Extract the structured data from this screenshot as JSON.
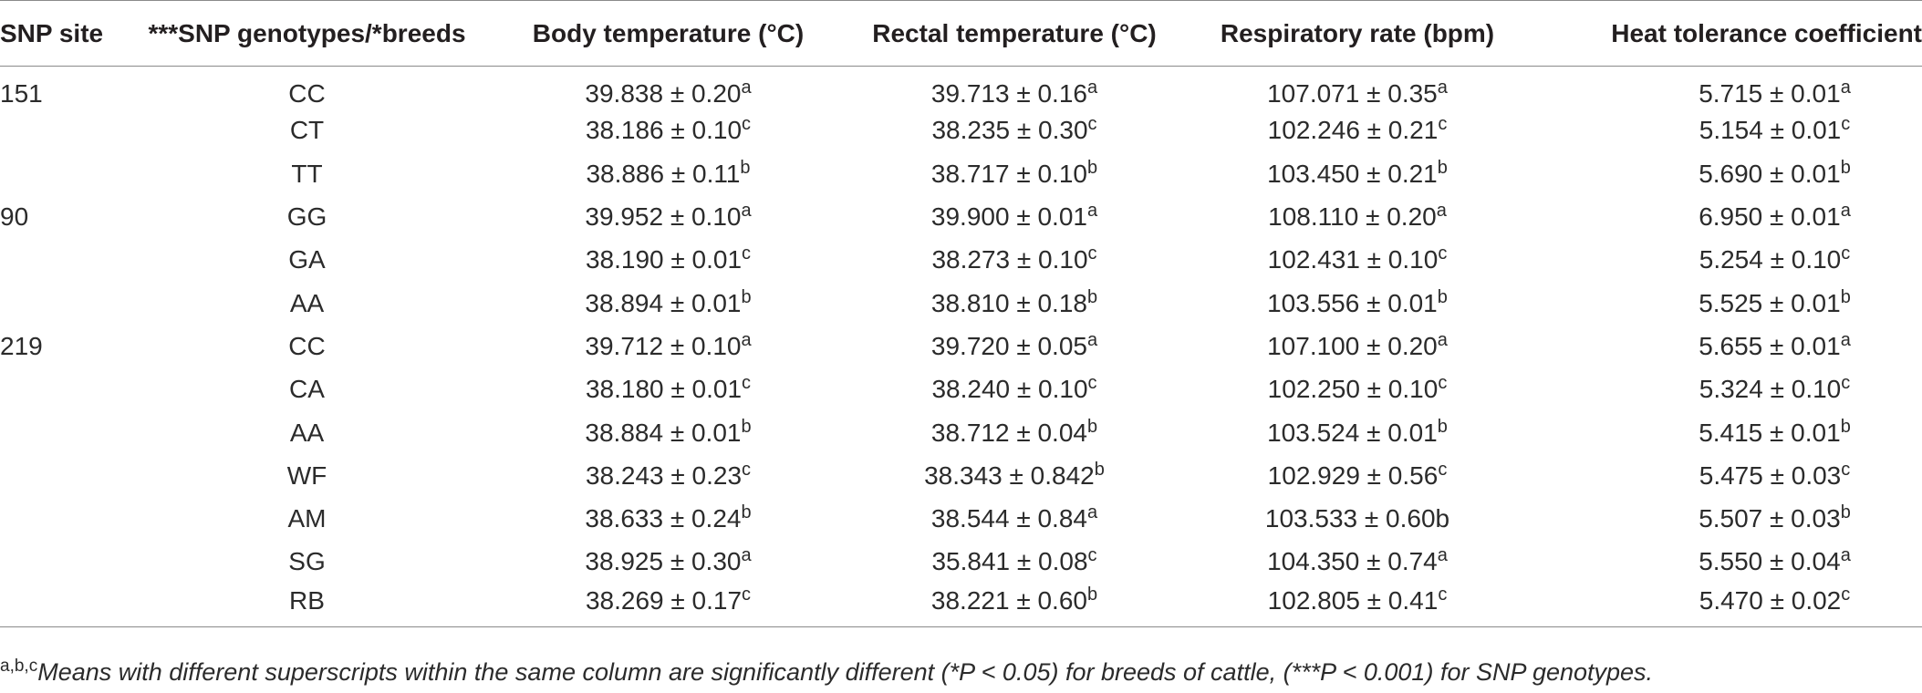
{
  "table": {
    "headers": [
      "SNP site",
      "***SNP genotypes/*breeds",
      "Body temperature (°C)",
      "Rectal temperature (°C)",
      "Respiratory rate (bpm)",
      "Heat tolerance coefficient"
    ],
    "rows": [
      {
        "site": "151",
        "genotype": "CC",
        "body": "39.838 ± 0.20",
        "body_sup": "a",
        "rectal": "39.713 ± 0.16",
        "rectal_sup": "a",
        "resp": "107.071 ± 0.35",
        "resp_sup": "a",
        "htc": "5.715 ± 0.01",
        "htc_sup": "a"
      },
      {
        "site": "",
        "genotype": "CT",
        "body": "38.186 ± 0.10",
        "body_sup": "c",
        "rectal": "38.235 ± 0.30",
        "rectal_sup": "c",
        "resp": "102.246 ± 0.21",
        "resp_sup": "c",
        "htc": "5.154 ± 0.01",
        "htc_sup": "c"
      },
      {
        "site": "",
        "genotype": "TT",
        "body": "38.886 ± 0.11",
        "body_sup": "b",
        "rectal": "38.717 ± 0.10",
        "rectal_sup": "b",
        "resp": "103.450 ± 0.21",
        "resp_sup": "b",
        "htc": "5.690 ± 0.01",
        "htc_sup": "b"
      },
      {
        "site": "90",
        "genotype": "GG",
        "body": "39.952 ± 0.10",
        "body_sup": "a",
        "rectal": "39.900 ± 0.01",
        "rectal_sup": "a",
        "resp": "108.110 ± 0.20",
        "resp_sup": "a",
        "htc": "6.950 ± 0.01",
        "htc_sup": "a"
      },
      {
        "site": "",
        "genotype": "GA",
        "body": "38.190 ± 0.01",
        "body_sup": "c",
        "rectal": "38.273 ± 0.10",
        "rectal_sup": "c",
        "resp": "102.431 ± 0.10",
        "resp_sup": "c",
        "htc": "5.254 ± 0.10",
        "htc_sup": "c"
      },
      {
        "site": "",
        "genotype": "AA",
        "body": "38.894 ± 0.01",
        "body_sup": "b",
        "rectal": "38.810 ± 0.18",
        "rectal_sup": "b",
        "resp": "103.556 ± 0.01",
        "resp_sup": "b",
        "htc": "5.525 ± 0.01",
        "htc_sup": "b"
      },
      {
        "site": "219",
        "genotype": "CC",
        "body": "39.712 ± 0.10",
        "body_sup": "a",
        "rectal": "39.720 ± 0.05",
        "rectal_sup": "a",
        "resp": "107.100 ± 0.20",
        "resp_sup": "a",
        "htc": "5.655 ± 0.01",
        "htc_sup": "a"
      },
      {
        "site": "",
        "genotype": "CA",
        "body": "38.180 ± 0.01",
        "body_sup": "c",
        "rectal": "38.240 ± 0.10",
        "rectal_sup": "c",
        "resp": "102.250 ± 0.10",
        "resp_sup": "c",
        "htc": "5.324 ± 0.10",
        "htc_sup": "c"
      },
      {
        "site": "",
        "genotype": "AA",
        "body": "38.884 ± 0.01",
        "body_sup": "b",
        "rectal": "38.712 ± 0.04",
        "rectal_sup": "b",
        "resp": "103.524 ± 0.01",
        "resp_sup": "b",
        "htc": "5.415 ± 0.01",
        "htc_sup": "b"
      },
      {
        "site": "",
        "genotype": "WF",
        "body": "38.243 ± 0.23",
        "body_sup": "c",
        "rectal": "38.343 ± 0.842",
        "rectal_sup": "b",
        "resp": "102.929 ± 0.56",
        "resp_sup": "c",
        "htc": "5.475 ± 0.03",
        "htc_sup": "c"
      },
      {
        "site": "",
        "genotype": "AM",
        "body": "38.633 ± 0.24",
        "body_sup": "b",
        "rectal": "38.544 ± 0.84",
        "rectal_sup": "a",
        "resp": "103.533 ± 0.60b",
        "resp_sup": "",
        "htc": "5.507 ± 0.03",
        "htc_sup": "b"
      },
      {
        "site": "",
        "genotype": "SG",
        "body": "38.925 ± 0.30",
        "body_sup": "a",
        "rectal": "35.841 ± 0.08",
        "rectal_sup": "c",
        "resp": "104.350 ± 0.74",
        "resp_sup": "a",
        "htc": "5.550 ± 0.04",
        "htc_sup": "a"
      },
      {
        "site": "",
        "genotype": "RB",
        "body": "38.269 ± 0.17",
        "body_sup": "c",
        "rectal": "38.221 ± 0.60",
        "rectal_sup": "b",
        "resp": "102.805 ± 0.41",
        "resp_sup": "c",
        "htc": "5.470 ± 0.02",
        "htc_sup": "c"
      }
    ]
  },
  "footnote": {
    "marker": "a,b,c",
    "text": "Means with different superscripts within the same column are significantly different (*P < 0.05) for breeds of cattle, (***P < 0.001) for SNP genotypes."
  }
}
